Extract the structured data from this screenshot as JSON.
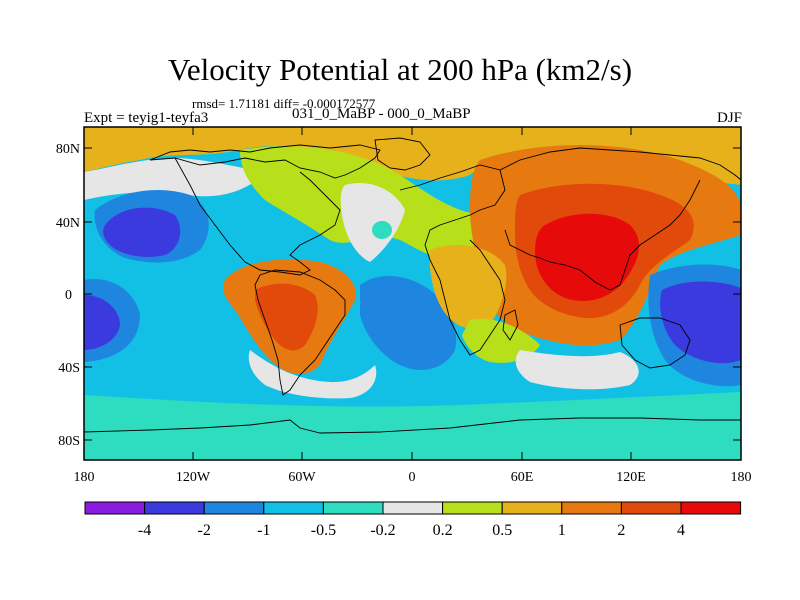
{
  "title": "Velocity Potential at 200 hPa (km2/s)",
  "stats": "rmsd= 1.71181 diff= -0.000172577",
  "experiment": "Expt = teyig1-teyfa3",
  "runs": "031_0_MaBP - 000_0_MaBP",
  "season": "DJF",
  "lat_labels": [
    "80N",
    "40N",
    "0",
    "40S",
    "80S"
  ],
  "lon_labels": [
    "180",
    "120W",
    "60W",
    "0",
    "60E",
    "120E",
    "180"
  ],
  "colorbar": {
    "colors": [
      "#8a1be0",
      "#3a3adf",
      "#1f86e0",
      "#12c0e6",
      "#2edcc0",
      "#e6e6e6",
      "#b8e01a",
      "#e6b11a",
      "#e67a10",
      "#e24a0c",
      "#e60a0a"
    ],
    "labels": [
      "-4",
      "-2",
      "-1",
      "-0.5",
      "-0.2",
      "0.2",
      "0.5",
      "1",
      "2",
      "4"
    ]
  },
  "palette": {
    "c_mid": "#e6e6e6",
    "c_neg1": "#2edcc0",
    "c_neg2": "#12c0e6",
    "c_neg3": "#1f86e0",
    "c_neg4": "#3a3adf",
    "c_pos1": "#b8e01a",
    "c_pos2": "#e6b11a",
    "c_pos3": "#e67a10",
    "c_pos4": "#e24a0c",
    "c_pos5": "#e60a0a"
  }
}
